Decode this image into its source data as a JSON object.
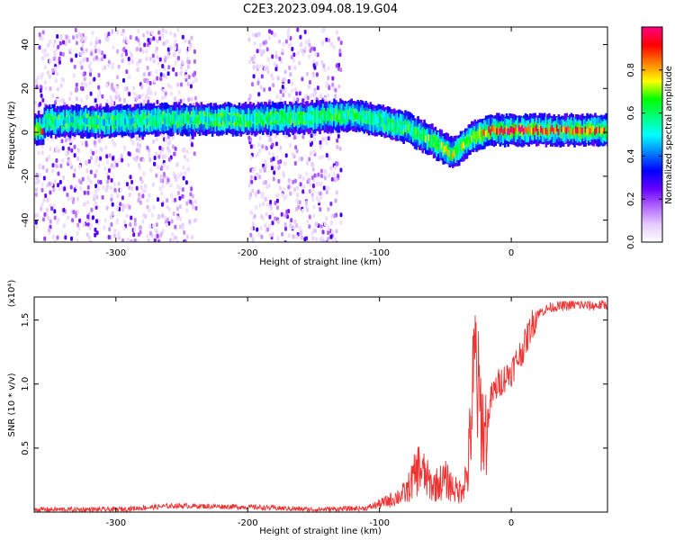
{
  "title": "C2E3.2023.094.08.19.G04",
  "chart_data": [
    {
      "type": "heatmap",
      "name": "spectrogram",
      "xlabel": "Height of straight line (km)",
      "ylabel": "Frequency (Hz)",
      "xlim": [
        -362,
        73
      ],
      "ylim": [
        -50,
        48
      ],
      "xticks": [
        -300,
        -200,
        -100,
        0
      ],
      "yticks": [
        -40,
        -20,
        0,
        20,
        40
      ],
      "colorbar": {
        "label": "Normalized spectral amplitude",
        "range": [
          0,
          1
        ],
        "ticks": [
          0.0,
          0.2,
          0.4,
          0.6,
          0.8
        ],
        "colors": [
          "#ffffff",
          "#e6ccff",
          "#b266ff",
          "#6600ff",
          "#0000ff",
          "#0080ff",
          "#00ffff",
          "#00ff80",
          "#00ff00",
          "#ffff00",
          "#ff8000",
          "#ff0000",
          "#ff0080"
        ]
      },
      "ridge": [
        {
          "x": -355,
          "y": 5,
          "amp": 0.45
        },
        {
          "x": -300,
          "y": 5,
          "amp": 0.4
        },
        {
          "x": -250,
          "y": 6,
          "amp": 0.45
        },
        {
          "x": -200,
          "y": 6,
          "amp": 0.45
        },
        {
          "x": -150,
          "y": 7,
          "amp": 0.5
        },
        {
          "x": -120,
          "y": 8,
          "amp": 0.5
        },
        {
          "x": -100,
          "y": 5,
          "amp": 0.45
        },
        {
          "x": -80,
          "y": 2,
          "amp": 0.5
        },
        {
          "x": -60,
          "y": -4,
          "amp": 0.55
        },
        {
          "x": -45,
          "y": -10,
          "amp": 0.6
        },
        {
          "x": -30,
          "y": -2,
          "amp": 0.55
        },
        {
          "x": -15,
          "y": 1,
          "amp": 0.8
        },
        {
          "x": 0,
          "y": 1,
          "amp": 0.85
        },
        {
          "x": 30,
          "y": 1,
          "amp": 0.75
        },
        {
          "x": 73,
          "y": 1,
          "amp": 0.7
        }
      ],
      "noise_bands": [
        {
          "x": [
            -362,
            -240
          ],
          "y": [
            -50,
            48
          ]
        },
        {
          "x": [
            -200,
            -130
          ],
          "y": [
            -50,
            48
          ]
        }
      ]
    },
    {
      "type": "line",
      "name": "snr",
      "xlabel": "Height of straight line (km)",
      "ylabel": "SNR (10 * v/v)",
      "yscale_note": "(x10⁴)",
      "xlim": [
        -362,
        73
      ],
      "ylim": [
        0,
        1.68
      ],
      "xticks": [
        -300,
        -200,
        -100,
        0
      ],
      "yticks": [
        0.5,
        1.0,
        1.5
      ],
      "color": "#ee3333",
      "series": [
        {
          "x": [
            -362,
            -300,
            -255,
            -200,
            -150,
            -110,
            -95,
            -80,
            -70,
            -60,
            -50,
            -40,
            -33,
            -30,
            -27,
            -25,
            -22,
            -20,
            -15,
            -10,
            -5,
            0,
            5,
            10,
            15,
            20,
            30,
            40,
            50,
            60,
            73
          ],
          "y": [
            0.02,
            0.02,
            0.05,
            0.04,
            0.02,
            0.03,
            0.08,
            0.15,
            0.35,
            0.2,
            0.25,
            0.15,
            0.3,
            0.8,
            1.2,
            0.9,
            0.7,
            0.6,
            0.9,
            1.0,
            1.05,
            1.1,
            1.2,
            1.3,
            1.45,
            1.55,
            1.6,
            1.61,
            1.62,
            1.61,
            1.62
          ]
        }
      ]
    }
  ]
}
